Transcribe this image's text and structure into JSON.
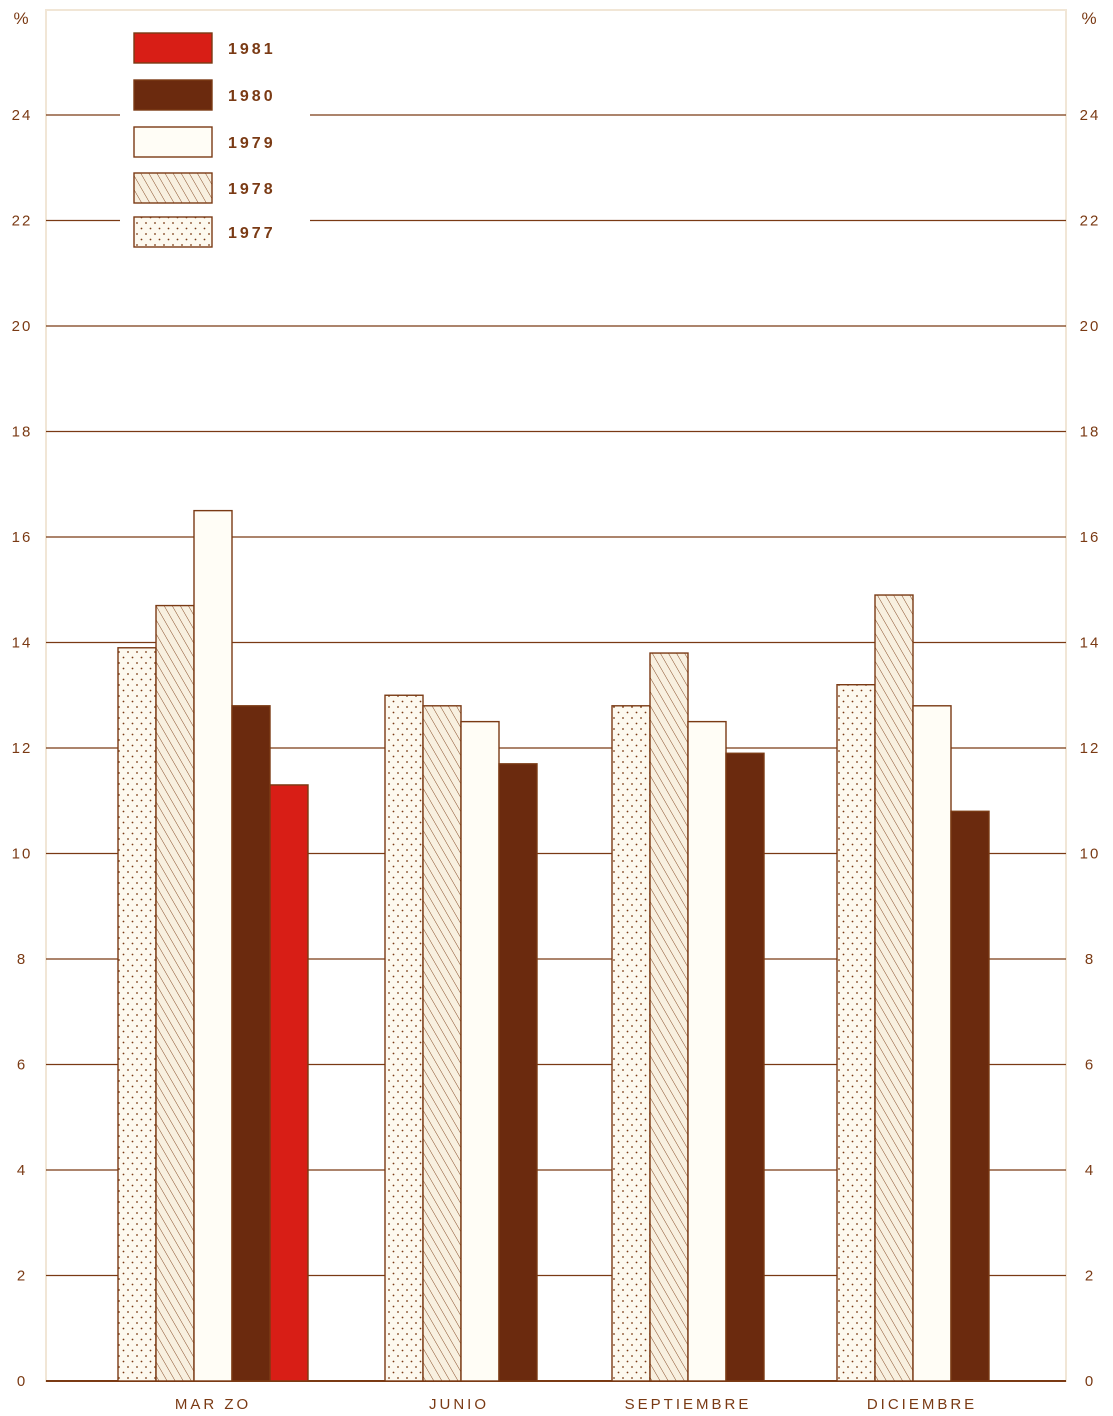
{
  "chart_data": {
    "type": "bar",
    "unit_left": "%",
    "unit_right": "%",
    "categories": [
      "MAR ZO",
      "JUNIO",
      "SEPTIEMBRE",
      "DICIEMBRE"
    ],
    "yticks": [
      0,
      2,
      4,
      6,
      8,
      10,
      12,
      14,
      16,
      18,
      20,
      22,
      24
    ],
    "ylim": [
      0,
      26
    ],
    "grid": true,
    "legend_position": "top-left",
    "series": [
      {
        "name": "1977",
        "pattern": "dots",
        "color": "#fdf9ef",
        "values": [
          13.9,
          13.0,
          12.8,
          13.2
        ]
      },
      {
        "name": "1978",
        "pattern": "hatch",
        "color": "#f8f0e0",
        "values": [
          14.7,
          12.8,
          13.8,
          14.9
        ]
      },
      {
        "name": "1979",
        "pattern": "plain",
        "color": "#fffdf6",
        "values": [
          16.5,
          12.5,
          12.5,
          12.8
        ]
      },
      {
        "name": "1980",
        "pattern": "solid",
        "color": "#6b2a0e",
        "values": [
          12.8,
          11.7,
          11.9,
          10.8
        ]
      },
      {
        "name": "1981",
        "pattern": "solid",
        "color": "#d81e16",
        "values": [
          11.3,
          null,
          null,
          null
        ]
      }
    ],
    "legend_order": [
      "1981",
      "1980",
      "1979",
      "1978",
      "1977"
    ]
  }
}
